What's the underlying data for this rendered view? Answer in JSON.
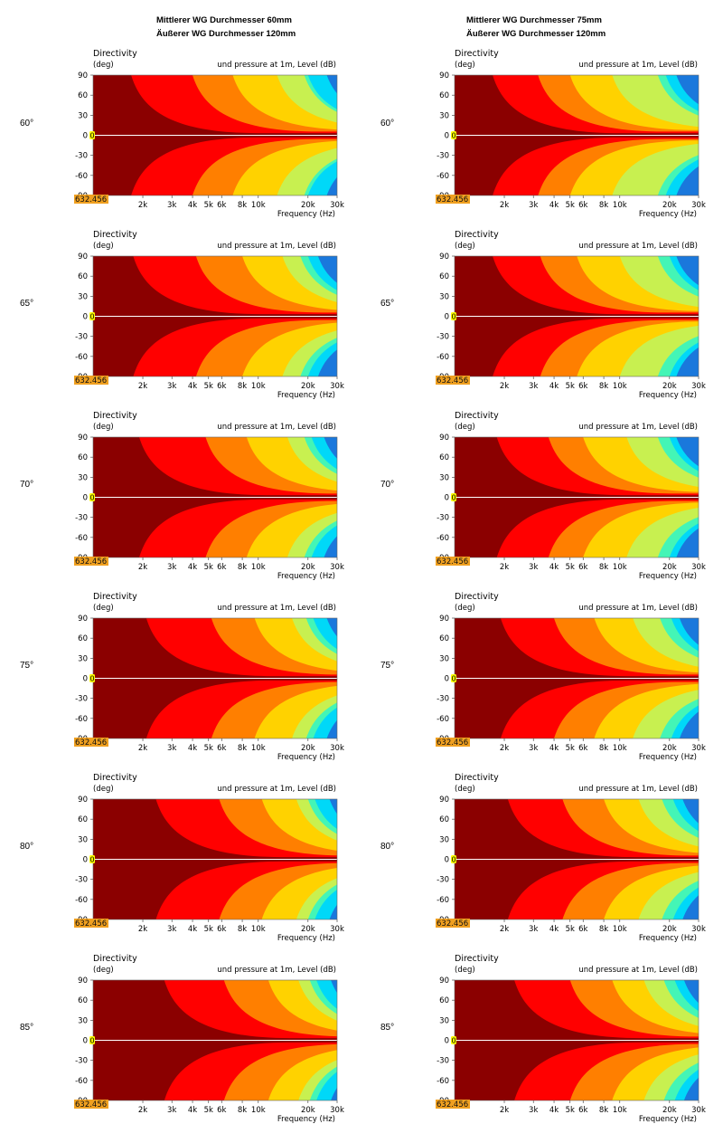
{
  "headers": {
    "left_line1": "Mittlerer WG Durchmesser 60mm",
    "left_line2": "Äußerer WG Durchmesser 120mm",
    "right_line1": "Mittlerer WG Durchmesser 75mm",
    "right_line2": "Äußerer WG Durchmesser 120mm"
  },
  "angles": [
    "60°",
    "65°",
    "70°",
    "75°",
    "80°",
    "85°"
  ],
  "plot_text": {
    "title_left": "Directivity",
    "unit_left": "(deg)",
    "title_right": "und pressure at 1m, Level  (dB)",
    "xlabel": "Frequency  (Hz)",
    "cursor_y": "0",
    "cursor_x": "632.456"
  },
  "colors": {
    "level_bands": [
      "#8b0000",
      "#ff0000",
      "#ff7f00",
      "#ffd200",
      "#c8f050",
      "#44f5b6",
      "#00d8f8",
      "#1a78dc"
    ],
    "cursor": "#ffff00",
    "cursor_label_bg": "#f0a020",
    "center_line": "#ffffff"
  },
  "chart_data": [
    {
      "type": "heatmap",
      "panel": "60° / WG 60mm",
      "angle": "60°",
      "xlabel": "Frequency  (Hz)",
      "ylabel": "Directivity (deg)",
      "scale_x": "log",
      "xlim": [
        1000,
        30000
      ],
      "ylim": [
        -90,
        90
      ],
      "x_ticks": [
        "2k",
        "3k",
        "4k",
        "5k",
        "6k",
        "8k",
        "10k",
        "20k",
        "30k"
      ],
      "y_ticks": [
        90,
        60,
        30,
        0,
        -30,
        -60,
        -90
      ],
      "band_onset_hz": [
        1700,
        4000,
        7000,
        13000,
        19000,
        20000,
        26000
      ],
      "colorbar": "Sound pressure at 1m, Level (dB)"
    },
    {
      "type": "heatmap",
      "panel": "60° / WG 75mm",
      "angle": "60°",
      "xlabel": "Frequency  (Hz)",
      "ylabel": "Directivity (deg)",
      "scale_x": "log",
      "xlim": [
        1000,
        30000
      ],
      "ylim": [
        -90,
        90
      ],
      "x_ticks": [
        "2k",
        "3k",
        "4k",
        "5k",
        "6k",
        "8k",
        "10k",
        "20k",
        "30k"
      ],
      "y_ticks": [
        90,
        60,
        30,
        0,
        -30,
        -60,
        -90
      ],
      "band_onset_hz": [
        1700,
        3200,
        5000,
        9000,
        17000,
        19000,
        22000,
        27000
      ],
      "colorbar": "Sound pressure at 1m, Level (dB)"
    },
    {
      "type": "heatmap",
      "panel": "65° / WG 60mm",
      "angle": "65°",
      "xlabel": "Frequency  (Hz)",
      "ylabel": "Directivity (deg)",
      "scale_x": "log",
      "xlim": [
        1000,
        30000
      ],
      "ylim": [
        -90,
        90
      ],
      "x_ticks": [
        "2k",
        "3k",
        "4k",
        "5k",
        "6k",
        "8k",
        "10k",
        "20k",
        "30k"
      ],
      "y_ticks": [
        90,
        60,
        30,
        0,
        -30,
        -60,
        -90
      ],
      "band_onset_hz": [
        1750,
        4200,
        8000,
        14000,
        18000,
        20000,
        23000
      ],
      "colorbar": "Sound pressure at 1m, Level (dB)"
    },
    {
      "type": "heatmap",
      "panel": "65° / WG 75mm",
      "angle": "65°",
      "xlabel": "Frequency  (Hz)",
      "ylabel": "Directivity (deg)",
      "scale_x": "log",
      "xlim": [
        1000,
        30000
      ],
      "ylim": [
        -90,
        90
      ],
      "x_ticks": [
        "2k",
        "3k",
        "4k",
        "5k",
        "6k",
        "8k",
        "10k",
        "20k",
        "30k"
      ],
      "y_ticks": [
        90,
        60,
        30,
        0,
        -30,
        -60,
        -90
      ],
      "band_onset_hz": [
        1700,
        3300,
        5500,
        10000,
        17000,
        20000,
        22000,
        27000
      ],
      "colorbar": "Sound pressure at 1m, Level (dB)"
    },
    {
      "type": "heatmap",
      "panel": "70° / WG 60mm",
      "angle": "70°",
      "xlabel": "Frequency  (Hz)",
      "ylabel": "Directivity (deg)",
      "scale_x": "log",
      "xlim": [
        1000,
        30000
      ],
      "ylim": [
        -90,
        90
      ],
      "x_ticks": [
        "2k",
        "3k",
        "4k",
        "5k",
        "6k",
        "8k",
        "10k",
        "20k",
        "30k"
      ],
      "y_ticks": [
        90,
        60,
        30,
        0,
        -30,
        -60,
        -90
      ],
      "band_onset_hz": [
        1900,
        4800,
        8500,
        15000,
        19000,
        21000,
        25000
      ],
      "colorbar": "Sound pressure at 1m, Level (dB)"
    },
    {
      "type": "heatmap",
      "panel": "70° / WG 75mm",
      "angle": "70°",
      "xlabel": "Frequency  (Hz)",
      "ylabel": "Directivity (deg)",
      "scale_x": "log",
      "xlim": [
        1000,
        30000
      ],
      "ylim": [
        -90,
        90
      ],
      "x_ticks": [
        "2k",
        "3k",
        "4k",
        "5k",
        "6k",
        "8k",
        "10k",
        "20k",
        "30k"
      ],
      "y_ticks": [
        90,
        60,
        30,
        0,
        -30,
        -60,
        -90
      ],
      "band_onset_hz": [
        1800,
        3700,
        6000,
        11000,
        17000,
        20000,
        22000,
        27000
      ],
      "colorbar": "Sound pressure at 1m, Level (dB)"
    },
    {
      "type": "heatmap",
      "panel": "75° / WG 60mm",
      "angle": "75°",
      "xlabel": "Frequency  (Hz)",
      "ylabel": "Directivity (deg)",
      "scale_x": "log",
      "xlim": [
        1000,
        30000
      ],
      "ylim": [
        -90,
        90
      ],
      "x_ticks": [
        "2k",
        "3k",
        "4k",
        "5k",
        "6k",
        "8k",
        "10k",
        "20k",
        "30k"
      ],
      "y_ticks": [
        90,
        60,
        30,
        0,
        -30,
        -60,
        -90
      ],
      "band_onset_hz": [
        2100,
        5200,
        9500,
        16000,
        19500,
        21500,
        26000
      ],
      "colorbar": "Sound pressure at 1m, Level (dB)"
    },
    {
      "type": "heatmap",
      "panel": "75° / WG 75mm",
      "angle": "75°",
      "xlabel": "Frequency  (Hz)",
      "ylabel": "Directivity (deg)",
      "scale_x": "log",
      "xlim": [
        1000,
        30000
      ],
      "ylim": [
        -90,
        90
      ],
      "x_ticks": [
        "2k",
        "3k",
        "4k",
        "5k",
        "6k",
        "8k",
        "10k",
        "20k",
        "30k"
      ],
      "y_ticks": [
        90,
        60,
        30,
        0,
        -30,
        -60,
        -90
      ],
      "band_onset_hz": [
        1900,
        4000,
        7000,
        12000,
        17500,
        20500,
        23000,
        26000
      ],
      "colorbar": "Sound pressure at 1m, Level (dB)"
    },
    {
      "type": "heatmap",
      "panel": "80° / WG 60mm",
      "angle": "80°",
      "xlabel": "Frequency  (Hz)",
      "ylabel": "Directivity (deg)",
      "scale_x": "log",
      "xlim": [
        1000,
        30000
      ],
      "ylim": [
        -90,
        90
      ],
      "x_ticks": [
        "2k",
        "3k",
        "4k",
        "5k",
        "6k",
        "8k",
        "10k",
        "20k",
        "30k"
      ],
      "y_ticks": [
        90,
        60,
        30,
        0,
        -30,
        -60,
        -90
      ],
      "band_onset_hz": [
        2400,
        5800,
        10500,
        17000,
        20000,
        22000,
        27000
      ],
      "colorbar": "Sound pressure at 1m, Level (dB)"
    },
    {
      "type": "heatmap",
      "panel": "80° / WG 75mm",
      "angle": "80°",
      "xlabel": "Frequency  (Hz)",
      "ylabel": "Directivity (deg)",
      "scale_x": "log",
      "xlim": [
        1000,
        30000
      ],
      "ylim": [
        -90,
        90
      ],
      "x_ticks": [
        "2k",
        "3k",
        "4k",
        "5k",
        "6k",
        "8k",
        "10k",
        "20k",
        "30k"
      ],
      "y_ticks": [
        90,
        60,
        30,
        0,
        -30,
        -60,
        -90
      ],
      "band_onset_hz": [
        2100,
        4500,
        8000,
        13000,
        18000,
        21000,
        24000,
        27000
      ],
      "colorbar": "Sound pressure at 1m, Level (dB)"
    },
    {
      "type": "heatmap",
      "panel": "85° / WG 60mm",
      "angle": "85°",
      "xlabel": "Frequency  (Hz)",
      "ylabel": "Directivity (deg)",
      "scale_x": "log",
      "xlim": [
        1000,
        30000
      ],
      "ylim": [
        -90,
        90
      ],
      "x_ticks": [
        "2k",
        "3k",
        "4k",
        "5k",
        "6k",
        "8k",
        "10k",
        "20k",
        "30k"
      ],
      "y_ticks": [
        90,
        60,
        30,
        0,
        -30,
        -60,
        -90
      ],
      "band_onset_hz": [
        2700,
        6200,
        11500,
        17500,
        20500,
        22500,
        27500
      ],
      "colorbar": "Sound pressure at 1m, Level (dB)"
    },
    {
      "type": "heatmap",
      "panel": "85° / WG 75mm",
      "angle": "85°",
      "xlabel": "Frequency  (Hz)",
      "ylabel": "Directivity (deg)",
      "scale_x": "log",
      "xlim": [
        1000,
        30000
      ],
      "ylim": [
        -90,
        90
      ],
      "x_ticks": [
        "2k",
        "3k",
        "4k",
        "5k",
        "6k",
        "8k",
        "10k",
        "20k",
        "30k"
      ],
      "y_ticks": [
        90,
        60,
        30,
        0,
        -30,
        -60,
        -90
      ],
      "band_onset_hz": [
        2300,
        5000,
        9000,
        14000,
        18500,
        21500,
        24500,
        28000
      ],
      "colorbar": "Sound pressure at 1m, Level (dB)"
    }
  ]
}
